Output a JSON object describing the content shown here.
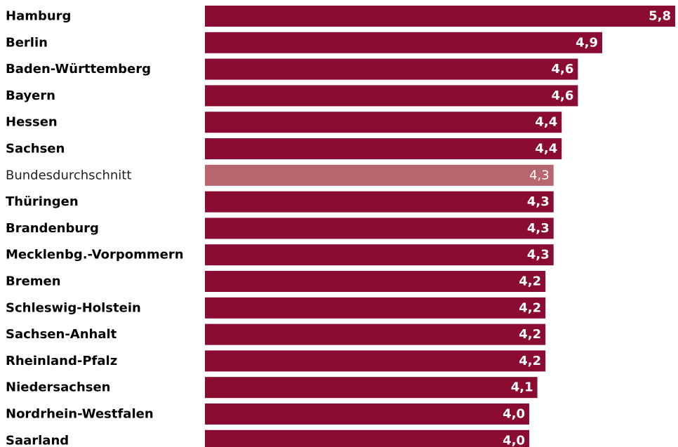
{
  "chart_data": {
    "type": "bar",
    "orientation": "horizontal",
    "categories": [
      "Hamburg",
      "Berlin",
      "Baden-Württemberg",
      "Bayern",
      "Hessen",
      "Sachsen",
      "Bundesdurchschnitt",
      "Thüringen",
      "Brandenburg",
      "Mecklenbg.-Vorpommern",
      "Bremen",
      "Schleswig-Holstein",
      "Sachsen-Anhalt",
      "Rheinland-Pfalz",
      "Niedersachsen",
      "Nordrhein-Westfalen",
      "Saarland"
    ],
    "values": [
      5.8,
      4.9,
      4.6,
      4.6,
      4.4,
      4.4,
      4.3,
      4.3,
      4.3,
      4.3,
      4.2,
      4.2,
      4.2,
      4.2,
      4.1,
      4.0,
      4.0
    ],
    "value_labels": [
      "5,8",
      "4,9",
      "4,6",
      "4,6",
      "4,4",
      "4,4",
      "4,3",
      "4,3",
      "4,3",
      "4,3",
      "4,2",
      "4,2",
      "4,2",
      "4,2",
      "4,1",
      "4,0",
      "4,0"
    ],
    "reference_category": "Bundesdurchschnitt",
    "xlim": [
      0,
      5.8
    ],
    "grid": false,
    "title": "",
    "xlabel": "",
    "ylabel": ""
  },
  "colors": {
    "bar": "#8b0c33",
    "reference_bar": "#b8666e",
    "value_text": "#ffffff",
    "category_text": "#000000"
  }
}
